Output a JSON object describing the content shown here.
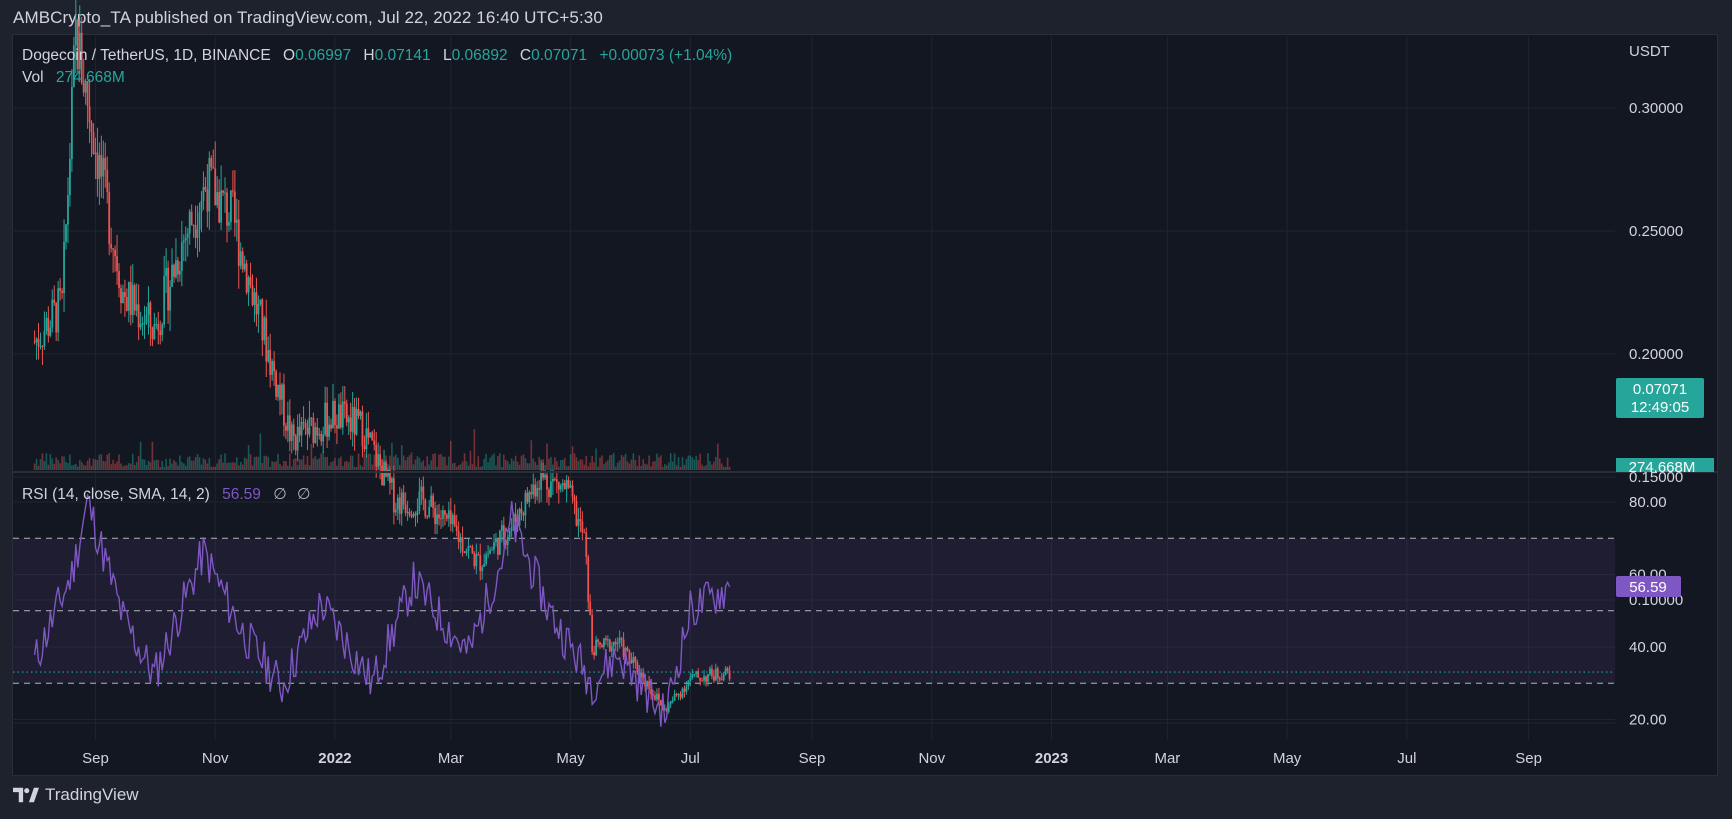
{
  "header": {
    "publisher": "AMBCrypto_TA published on TradingView.com, Jul 22, 2022 16:40 UTC+5:30"
  },
  "footer": {
    "brand": "TradingView"
  },
  "colors": {
    "background": "#131722",
    "grid": "#1f2430",
    "up": "#26a69a",
    "down": "#ef5350",
    "rsi_line": "#7e57c2",
    "rsi_band": "#7e57c2",
    "text": "#d1d4dc",
    "price_label_bg": "#26a69a",
    "rsi_label_bg": "#7e57c2"
  },
  "legend": {
    "symbol": "Dogecoin / TetherUS, 1D, BINANCE",
    "open_label": "O",
    "open": "0.06997",
    "high_label": "H",
    "high": "0.07141",
    "low_label": "L",
    "low": "0.06892",
    "close_label": "C",
    "close": "0.07071",
    "change": "+0.00073 (+1.04%)",
    "vol_label": "Vol",
    "vol": "274.668M"
  },
  "rsi_legend": {
    "name": "RSI (14, close, SMA, 14, 2)",
    "value": "56.59",
    "sym1": "∅",
    "sym2": "∅"
  },
  "price_axis": {
    "unit": "USDT",
    "ticks": [
      "0.30000",
      "0.25000",
      "0.20000",
      "0.15000",
      "0.10000"
    ],
    "current_price": "0.07071",
    "countdown": "12:49:05",
    "volume_label": "274.668M"
  },
  "rsi_axis": {
    "ticks": [
      "80.00",
      "60.00",
      "40.00",
      "20.00"
    ],
    "current": "56.59"
  },
  "time_axis": {
    "labels": [
      "Sep",
      "Nov",
      "2022",
      "Mar",
      "May",
      "Jul",
      "Sep",
      "Nov",
      "2023",
      "Mar",
      "May",
      "Jul",
      "Sep"
    ],
    "bold": [
      false,
      false,
      true,
      false,
      false,
      false,
      false,
      false,
      true,
      false,
      false,
      false,
      false
    ]
  },
  "chart_data": [
    {
      "type": "candlestick",
      "title": "Dogecoin / TetherUS, 1D, BINANCE",
      "ylabel": "USDT",
      "ylim": [
        0.045,
        0.355
      ],
      "x": [
        "2021-08-01",
        "2021-08-15",
        "2021-08-22",
        "2021-09-01",
        "2021-09-15",
        "2021-10-01",
        "2021-10-15",
        "2021-10-28",
        "2021-11-10",
        "2021-11-25",
        "2021-12-10",
        "2022-01-01",
        "2022-01-15",
        "2022-02-01",
        "2022-02-15",
        "2022-03-01",
        "2022-03-15",
        "2022-04-01",
        "2022-04-15",
        "2022-04-29",
        "2022-05-08",
        "2022-05-12",
        "2022-05-25",
        "2022-06-10",
        "2022-06-18",
        "2022-07-01",
        "2022-07-21"
      ],
      "close": [
        0.205,
        0.22,
        0.33,
        0.285,
        0.225,
        0.21,
        0.245,
        0.27,
        0.255,
        0.21,
        0.165,
        0.175,
        0.17,
        0.14,
        0.14,
        0.13,
        0.115,
        0.13,
        0.15,
        0.145,
        0.125,
        0.08,
        0.083,
        0.065,
        0.055,
        0.068,
        0.0707
      ],
      "series": [
        {
          "name": "Vol",
          "last": "274.668M"
        }
      ]
    },
    {
      "type": "line",
      "title": "RSI (14, close, SMA, 14, 2)",
      "ylim": [
        15,
        85
      ],
      "bands": [
        30,
        50,
        70
      ],
      "x": [
        "2021-08-01",
        "2021-08-20",
        "2021-08-28",
        "2021-09-15",
        "2021-10-01",
        "2021-10-26",
        "2021-11-15",
        "2021-12-05",
        "2021-12-25",
        "2022-01-20",
        "2022-02-10",
        "2022-03-10",
        "2022-03-28",
        "2022-04-01",
        "2022-04-20",
        "2022-05-12",
        "2022-05-25",
        "2022-06-18",
        "2022-07-01",
        "2022-07-21"
      ],
      "values": [
        36,
        60,
        80,
        48,
        32,
        66,
        44,
        29,
        52,
        30,
        58,
        38,
        66,
        75,
        50,
        30,
        38,
        21,
        50,
        56.59
      ],
      "last": 56.59
    }
  ]
}
